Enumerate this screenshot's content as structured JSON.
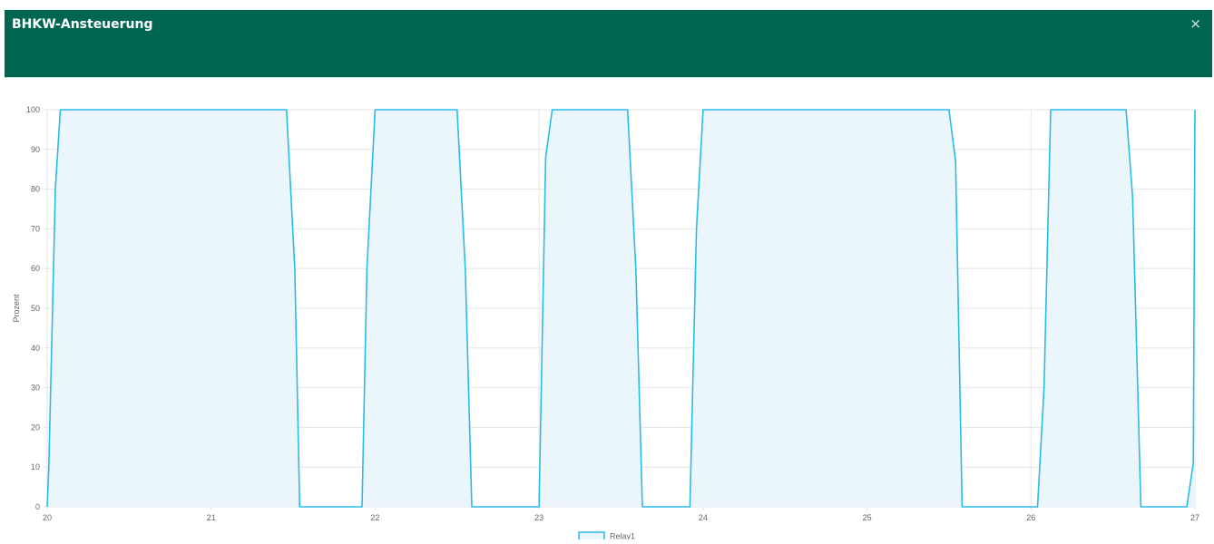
{
  "dialog": {
    "title": "BHKW-Ansteuerung",
    "close_label": "×"
  },
  "chart_data": {
    "type": "area",
    "ylabel": "Prozent",
    "xlabel": "",
    "ylim": [
      0,
      100
    ],
    "xlim": [
      20,
      27
    ],
    "yticks": [
      0,
      10,
      20,
      30,
      40,
      50,
      60,
      70,
      80,
      90,
      100
    ],
    "xticks": [
      20,
      21,
      22,
      23,
      24,
      25,
      26,
      27
    ],
    "grid": true,
    "legend": "bottom-center",
    "colors": {
      "line": "#2bbbe8",
      "fill": "#eaf6fb",
      "grid": "#e6e6e6"
    },
    "series": [
      {
        "name": "Relay1",
        "x": [
          20.0,
          20.01,
          20.05,
          20.08,
          21.46,
          21.51,
          21.54,
          21.92,
          21.95,
          22.0,
          22.5,
          22.55,
          22.59,
          23.0,
          23.04,
          23.08,
          23.54,
          23.59,
          23.63,
          23.92,
          23.96,
          24.0,
          25.5,
          25.54,
          25.58,
          26.04,
          26.08,
          26.12,
          26.58,
          26.62,
          26.67,
          26.95,
          26.99,
          27.0
        ],
        "y": [
          0,
          10,
          80,
          100,
          100,
          60,
          0,
          0,
          60,
          100,
          100,
          60,
          0,
          0,
          88,
          100,
          100,
          60,
          0,
          0,
          70,
          100,
          100,
          87,
          0,
          0,
          30,
          100,
          100,
          78,
          0,
          0,
          11,
          100
        ]
      }
    ]
  }
}
